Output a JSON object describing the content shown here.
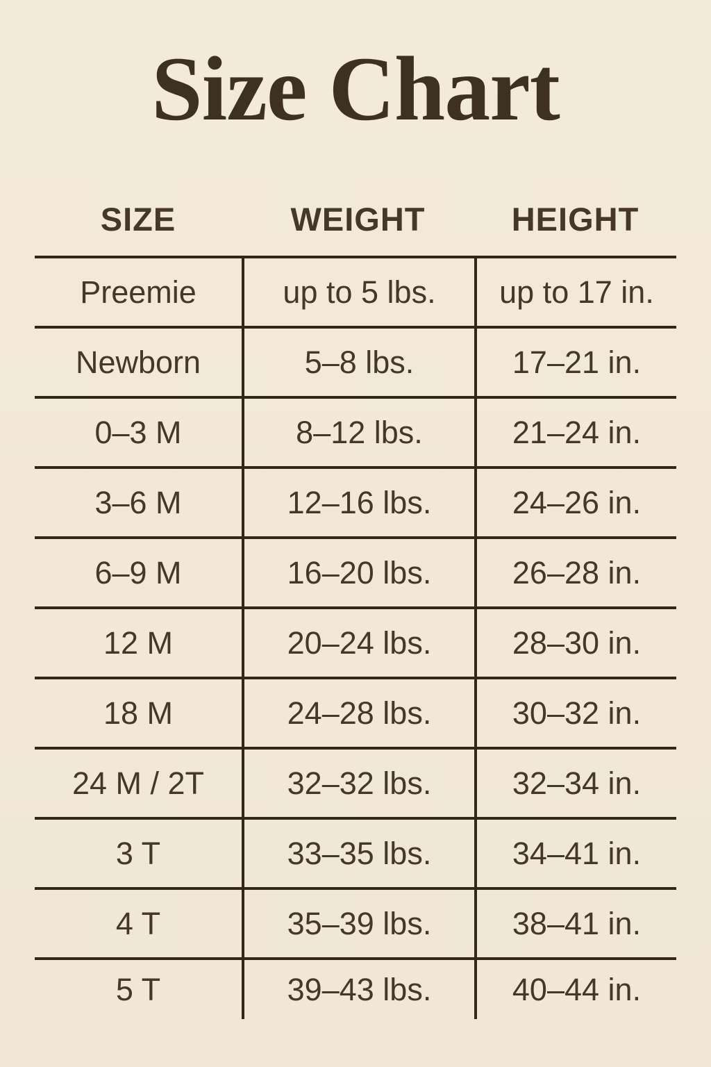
{
  "page": {
    "title": "Size Chart",
    "background_color": "#f1e9d9",
    "text_color": "#443827",
    "line_color": "#32281a"
  },
  "table": {
    "columns": [
      {
        "label": "SIZE"
      },
      {
        "label": "WEIGHT"
      },
      {
        "label": "HEIGHT"
      }
    ],
    "rows": [
      {
        "size": "Preemie",
        "weight": "up to 5 lbs.",
        "height": "up to 17 in."
      },
      {
        "size": "Newborn",
        "weight": "5–8 lbs.",
        "height": "17–21 in."
      },
      {
        "size": "0–3 M",
        "weight": "8–12 lbs.",
        "height": "21–24 in."
      },
      {
        "size": "3–6 M",
        "weight": "12–16 lbs.",
        "height": "24–26 in."
      },
      {
        "size": "6–9 M",
        "weight": "16–20 lbs.",
        "height": "26–28 in."
      },
      {
        "size": "12 M",
        "weight": "20–24 lbs.",
        "height": "28–30 in."
      },
      {
        "size": "18 M",
        "weight": "24–28 lbs.",
        "height": "30–32 in."
      },
      {
        "size": "24 M / 2T",
        "weight": "32–32 lbs.",
        "height": "32–34 in."
      },
      {
        "size": "3 T",
        "weight": "33–35 lbs.",
        "height": "34–41 in."
      },
      {
        "size": "4 T",
        "weight": "35–39 lbs.",
        "height": "38–41 in."
      },
      {
        "size": "5 T",
        "weight": "39–43 lbs.",
        "height": "40–44 in."
      }
    ]
  },
  "chart_data": {
    "type": "table",
    "title": "Size Chart",
    "columns": [
      "SIZE",
      "WEIGHT",
      "HEIGHT"
    ],
    "rows": [
      [
        "Preemie",
        "up to 5 lbs.",
        "up to 17 in."
      ],
      [
        "Newborn",
        "5–8 lbs.",
        "17–21 in."
      ],
      [
        "0–3 M",
        "8–12 lbs.",
        "21–24 in."
      ],
      [
        "3–6 M",
        "12–16 lbs.",
        "24–26 in."
      ],
      [
        "6–9 M",
        "16–20 lbs.",
        "26–28 in."
      ],
      [
        "12 M",
        "20–24 lbs.",
        "28–30 in."
      ],
      [
        "18 M",
        "24–28 lbs.",
        "30–32 in."
      ],
      [
        "24 M / 2T",
        "32–32 lbs.",
        "32–34 in."
      ],
      [
        "3 T",
        "33–35 lbs.",
        "34–41 in."
      ],
      [
        "4 T",
        "35–39 lbs.",
        "38–41 in."
      ],
      [
        "5 T",
        "39–43 lbs.",
        "40–44 in."
      ]
    ]
  }
}
